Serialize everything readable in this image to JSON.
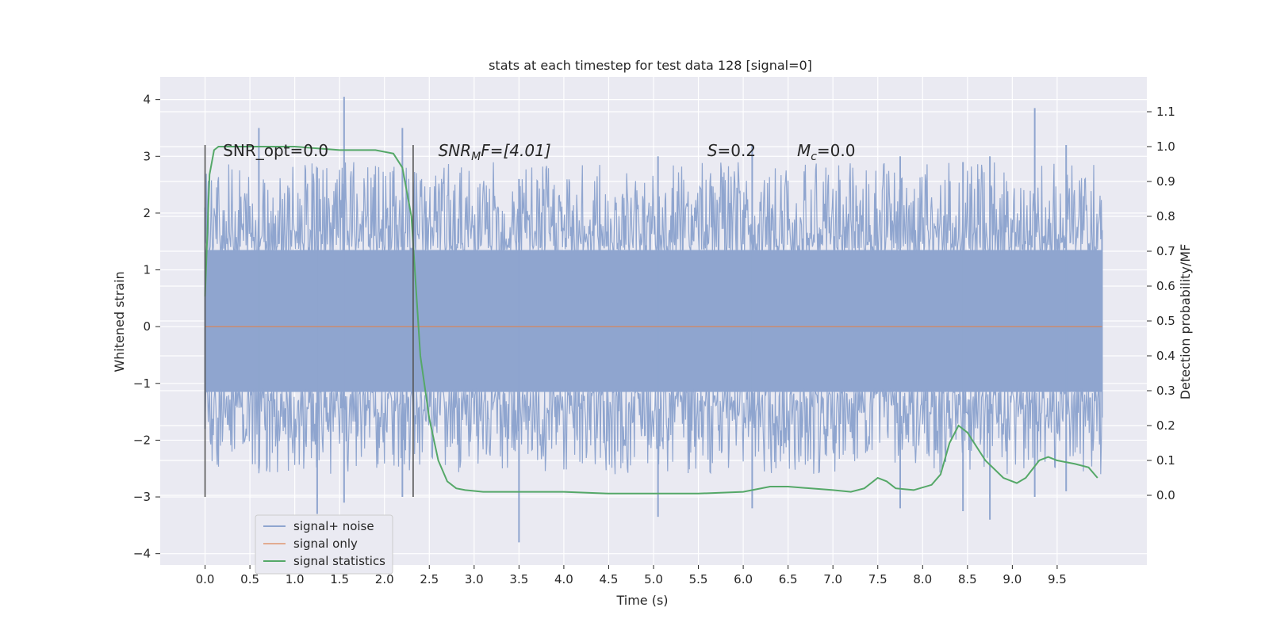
{
  "chart_data": {
    "type": "line",
    "title": "stats at each timestep for test data 128 [signal=0]",
    "xlabel": "Time (s)",
    "ylabel_left": "Whitened strain",
    "ylabel_right": "Detection probability/MF",
    "xlim": [
      -0.5,
      10.5
    ],
    "ylim_left": [
      -4.2,
      4.4
    ],
    "ylim_right": [
      -0.2,
      1.2
    ],
    "x_ticks": [
      "0.0",
      "0.5",
      "1.0",
      "1.5",
      "2.0",
      "2.5",
      "3.0",
      "3.5",
      "4.0",
      "4.5",
      "5.0",
      "5.5",
      "6.0",
      "6.5",
      "7.0",
      "7.5",
      "8.0",
      "8.5",
      "9.0",
      "9.5"
    ],
    "y_left_ticks": [
      "−4",
      "−3",
      "−2",
      "−1",
      "0",
      "1",
      "2",
      "3",
      "4"
    ],
    "y_right_ticks": [
      "0.0",
      "0.1",
      "0.2",
      "0.3",
      "0.4",
      "0.5",
      "0.6",
      "0.7",
      "0.8",
      "0.9",
      "1.0",
      "1.1"
    ],
    "grid": true,
    "legend_position": "lower-left",
    "colors": {
      "background": "#eaeaf2",
      "grid": "#ffffff",
      "noise": "#8fa5cf",
      "signal": "#dd8452",
      "stats": "#55a868",
      "vline": "#555555"
    },
    "series": [
      {
        "name": "signal+ noise",
        "axis": "left",
        "x_range": [
          0.0,
          10.0
        ],
        "envelope_peaks": [
          [
            0.0,
            2.1,
            -1.8
          ],
          [
            0.6,
            3.5,
            -2.5
          ],
          [
            1.25,
            2.8,
            -3.3
          ],
          [
            1.55,
            4.05,
            -3.1
          ],
          [
            2.2,
            3.5,
            -3.0
          ],
          [
            3.5,
            2.6,
            -3.8
          ],
          [
            5.05,
            3.0,
            -3.35
          ],
          [
            6.1,
            3.2,
            -3.2
          ],
          [
            7.75,
            3.0,
            -3.2
          ],
          [
            8.45,
            2.9,
            -3.25
          ],
          [
            8.75,
            3.0,
            -3.4
          ],
          [
            9.25,
            3.85,
            -3.0
          ],
          [
            9.6,
            3.2,
            -2.9
          ],
          [
            10.0,
            1.7,
            -1.6
          ]
        ]
      },
      {
        "name": "signal only",
        "axis": "left",
        "x": [
          0.0,
          10.0
        ],
        "y": [
          0.0,
          0.0
        ]
      },
      {
        "name": "signal statistics",
        "axis": "right",
        "x": [
          0.0,
          0.05,
          0.1,
          0.15,
          0.3,
          0.6,
          1.0,
          1.5,
          1.9,
          2.1,
          2.2,
          2.3,
          2.4,
          2.5,
          2.6,
          2.7,
          2.8,
          2.9,
          3.1,
          3.5,
          4.0,
          4.5,
          5.0,
          5.5,
          6.0,
          6.3,
          6.5,
          7.0,
          7.2,
          7.35,
          7.5,
          7.6,
          7.7,
          7.9,
          8.1,
          8.2,
          8.3,
          8.4,
          8.5,
          8.7,
          8.9,
          9.05,
          9.15,
          9.3,
          9.4,
          9.5,
          9.7,
          9.85,
          9.95
        ],
        "y": [
          0.57,
          0.92,
          0.99,
          1.0,
          1.0,
          1.0,
          1.0,
          0.99,
          0.99,
          0.98,
          0.94,
          0.8,
          0.4,
          0.22,
          0.1,
          0.04,
          0.02,
          0.015,
          0.01,
          0.01,
          0.01,
          0.005,
          0.005,
          0.005,
          0.01,
          0.025,
          0.025,
          0.015,
          0.01,
          0.02,
          0.05,
          0.04,
          0.02,
          0.015,
          0.03,
          0.06,
          0.15,
          0.2,
          0.18,
          0.1,
          0.05,
          0.035,
          0.05,
          0.1,
          0.11,
          0.1,
          0.09,
          0.08,
          0.05
        ]
      }
    ],
    "vlines": [
      0.0,
      2.32
    ],
    "vline_y_range": [
      -3.0,
      3.2
    ],
    "annotations": [
      {
        "text": "SNR_opt=0.0",
        "x": 0.2,
        "y": 3.1
      },
      {
        "text": "SNR",
        "sub": "M",
        "tail": "F=[4.01]",
        "italic": true,
        "x": 2.6,
        "y": 3.1
      },
      {
        "text": "S",
        "tail": "=0.2",
        "italic": true,
        "x": 5.6,
        "y": 3.1
      },
      {
        "text": "M",
        "sub": "c",
        "tail": "=0.0",
        "italic": true,
        "x": 6.6,
        "y": 3.1
      }
    ]
  }
}
